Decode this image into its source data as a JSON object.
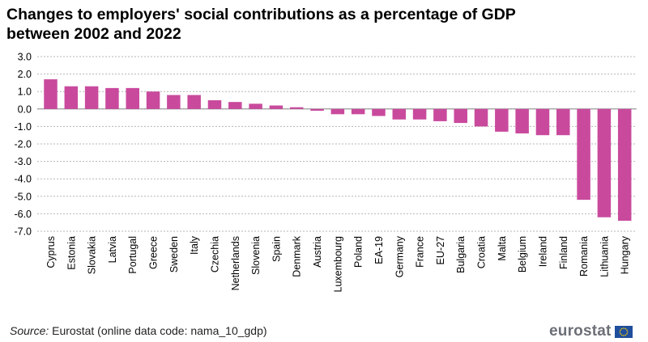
{
  "title": "Changes to employers' social contributions as a percentage of GDP between 2002 and 2022",
  "source": {
    "label": "Source:",
    "text": "Eurostat (online data code: nama_10_gdp)"
  },
  "brand": {
    "name": "eurostat",
    "flag_icon": "eu-flag-icon",
    "flag_colors": {
      "field": "#1f4e9c",
      "stars": "#ffd400"
    }
  },
  "colors": {
    "bar": "#c94a9d",
    "grid": "#b5b5b5"
  },
  "chart_data": {
    "type": "bar",
    "title": "Changes to employers' social contributions as a percentage of GDP between 2002 and 2022",
    "xlabel": "",
    "ylabel": "",
    "ylim": [
      -7.0,
      3.0
    ],
    "yticks": [
      3.0,
      2.0,
      1.0,
      0.0,
      -1.0,
      -2.0,
      -3.0,
      -4.0,
      -5.0,
      -6.0,
      -7.0
    ],
    "ytick_labels": [
      "3.0",
      "2.0",
      "1.0",
      "0.0",
      "-1.0",
      "-2.0",
      "-3.0",
      "-4.0",
      "-5.0",
      "-6.0",
      "-7.0"
    ],
    "grid": true,
    "legend": "none",
    "categories": [
      "Cyprus",
      "Estonia",
      "Slovakia",
      "Latvia",
      "Portugal",
      "Greece",
      "Sweden",
      "Italy",
      "Czechia",
      "Netherlands",
      "Slovenia",
      "Spain",
      "Denmark",
      "Austria",
      "Luxembourg",
      "Poland",
      "EA-19",
      "Germany",
      "France",
      "EU-27",
      "Bulgaria",
      "Croatia",
      "Malta",
      "Belgium",
      "Ireland",
      "Finland",
      "Romania",
      "Lithuania",
      "Hungary"
    ],
    "values": [
      1.7,
      1.3,
      1.3,
      1.2,
      1.2,
      1.0,
      0.8,
      0.8,
      0.5,
      0.4,
      0.3,
      0.2,
      0.1,
      -0.1,
      -0.3,
      -0.3,
      -0.4,
      -0.6,
      -0.6,
      -0.7,
      -0.8,
      -1.0,
      -1.3,
      -1.4,
      -1.5,
      -1.5,
      -5.2,
      -6.2,
      -6.4
    ]
  }
}
